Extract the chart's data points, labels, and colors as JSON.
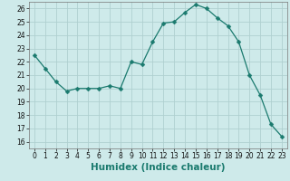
{
  "x": [
    0,
    1,
    2,
    3,
    4,
    5,
    6,
    7,
    8,
    9,
    10,
    11,
    12,
    13,
    14,
    15,
    16,
    17,
    18,
    19,
    20,
    21,
    22,
    23
  ],
  "y": [
    22.5,
    21.5,
    20.5,
    19.8,
    20.0,
    20.0,
    20.0,
    20.2,
    20.0,
    22.0,
    21.8,
    23.5,
    24.9,
    25.0,
    25.7,
    26.3,
    26.0,
    25.3,
    24.7,
    23.5,
    21.0,
    19.5,
    17.3,
    16.4
  ],
  "line_color": "#1a7a6e",
  "marker": "D",
  "marker_size": 2.5,
  "bg_color": "#ceeaea",
  "grid_color": "#b0d0d0",
  "xlabel": "Humidex (Indice chaleur)",
  "xlim": [
    -0.5,
    23.5
  ],
  "ylim": [
    15.5,
    26.5
  ],
  "yticks": [
    16,
    17,
    18,
    19,
    20,
    21,
    22,
    23,
    24,
    25,
    26
  ],
  "xticks": [
    0,
    1,
    2,
    3,
    4,
    5,
    6,
    7,
    8,
    9,
    10,
    11,
    12,
    13,
    14,
    15,
    16,
    17,
    18,
    19,
    20,
    21,
    22,
    23
  ],
  "tick_fontsize": 5.5,
  "xlabel_fontsize": 7.5
}
